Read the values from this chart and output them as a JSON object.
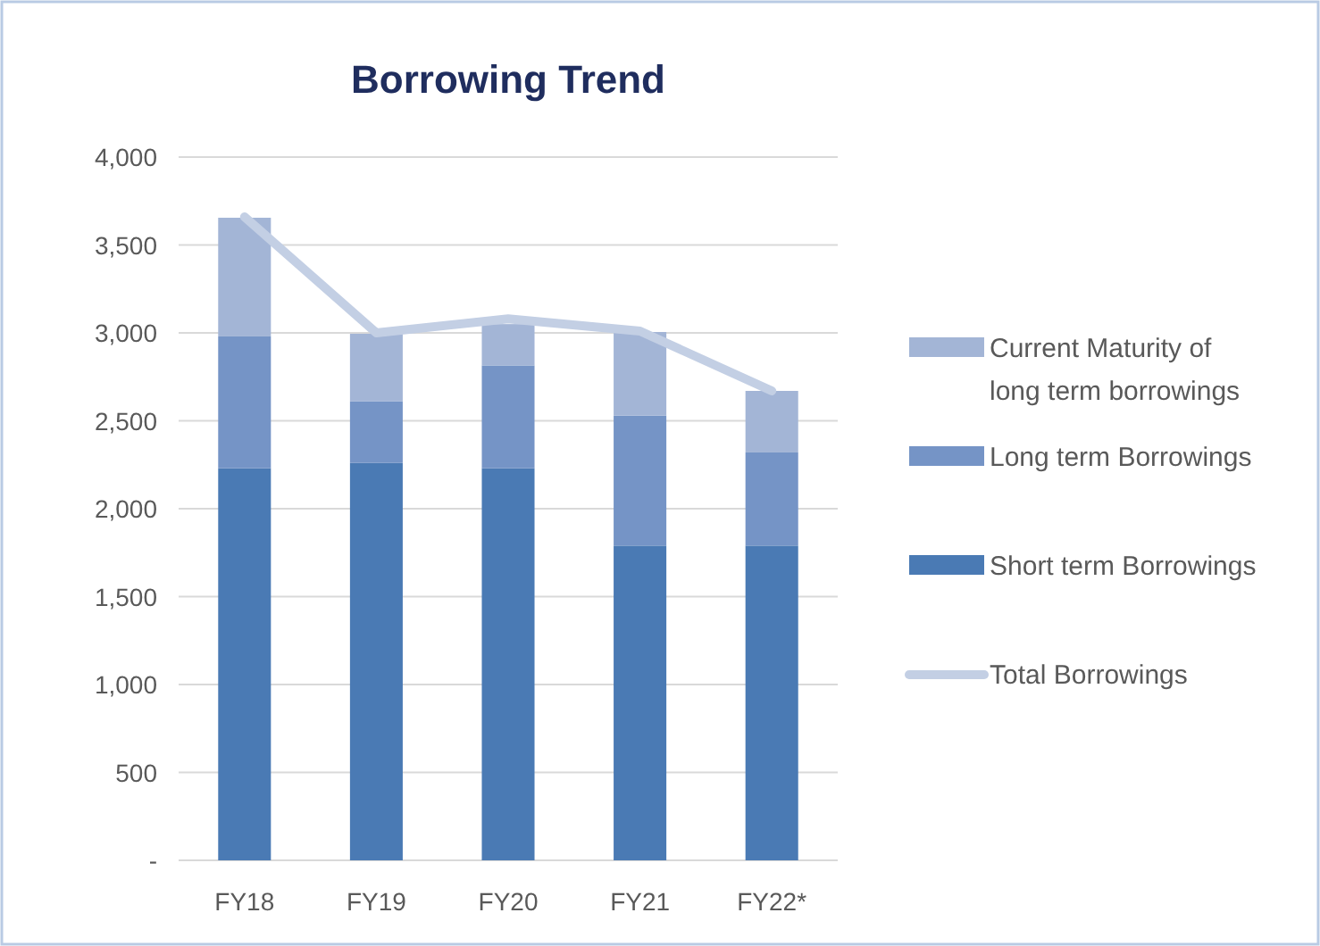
{
  "chart_data": {
    "type": "bar",
    "title": "Borrowing Trend",
    "categories": [
      "FY18",
      "FY19",
      "FY20",
      "FY21",
      "FY22*"
    ],
    "stacked": true,
    "ylim": [
      0,
      4000
    ],
    "yticks": [
      {
        "value": 0,
        "label": "-"
      },
      {
        "value": 500,
        "label": "500"
      },
      {
        "value": 1000,
        "label": "1,000"
      },
      {
        "value": 1500,
        "label": "1,500"
      },
      {
        "value": 2000,
        "label": "2,000"
      },
      {
        "value": 2500,
        "label": "2,500"
      },
      {
        "value": 3000,
        "label": "3,000"
      },
      {
        "value": 3500,
        "label": "3,500"
      },
      {
        "value": 4000,
        "label": "4,000"
      }
    ],
    "grid": "y",
    "legend": "right",
    "series": [
      {
        "name": "Short term Borrowings",
        "color": "#4a7ab4",
        "values": [
          2230,
          2260,
          2230,
          1790,
          1790
        ]
      },
      {
        "name": "Long term Borrowings",
        "color": "#7594c6",
        "values": [
          750,
          350,
          585,
          740,
          530
        ]
      },
      {
        "name": "Current Maturity of long term borrowings",
        "color": "#a3b5d6",
        "values": [
          675,
          385,
          235,
          475,
          350
        ]
      },
      {
        "name": "Total Borrowings",
        "type": "line",
        "color": "#c3cfe4",
        "values": [
          3660,
          3000,
          3080,
          3010,
          2670
        ]
      }
    ]
  }
}
